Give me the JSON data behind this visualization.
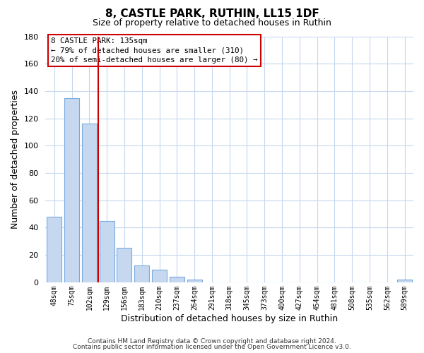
{
  "title": "8, CASTLE PARK, RUTHIN, LL15 1DF",
  "subtitle": "Size of property relative to detached houses in Ruthin",
  "xlabel": "Distribution of detached houses by size in Ruthin",
  "ylabel": "Number of detached properties",
  "bin_labels": [
    "48sqm",
    "75sqm",
    "102sqm",
    "129sqm",
    "156sqm",
    "183sqm",
    "210sqm",
    "237sqm",
    "264sqm",
    "291sqm",
    "318sqm",
    "345sqm",
    "373sqm",
    "400sqm",
    "427sqm",
    "454sqm",
    "481sqm",
    "508sqm",
    "535sqm",
    "562sqm",
    "589sqm"
  ],
  "bar_values": [
    48,
    135,
    116,
    45,
    25,
    12,
    9,
    4,
    2,
    0,
    0,
    0,
    0,
    0,
    0,
    0,
    0,
    0,
    0,
    0,
    2
  ],
  "bar_color": "#c5d8ef",
  "bar_edge_color": "#7aabe0",
  "ylim": [
    0,
    180
  ],
  "yticks": [
    0,
    20,
    40,
    60,
    80,
    100,
    120,
    140,
    160,
    180
  ],
  "vline_color": "#cc0000",
  "annotation_title": "8 CASTLE PARK: 135sqm",
  "annotation_line1": "← 79% of detached houses are smaller (310)",
  "annotation_line2": "20% of semi-detached houses are larger (80) →",
  "annotation_box_color": "#ffffff",
  "annotation_box_edge_color": "#cc0000",
  "footer1": "Contains HM Land Registry data © Crown copyright and database right 2024.",
  "footer2": "Contains public sector information licensed under the Open Government Licence v3.0.",
  "background_color": "#ffffff",
  "grid_color": "#c5d8ee",
  "fig_width": 6.0,
  "fig_height": 5.0
}
